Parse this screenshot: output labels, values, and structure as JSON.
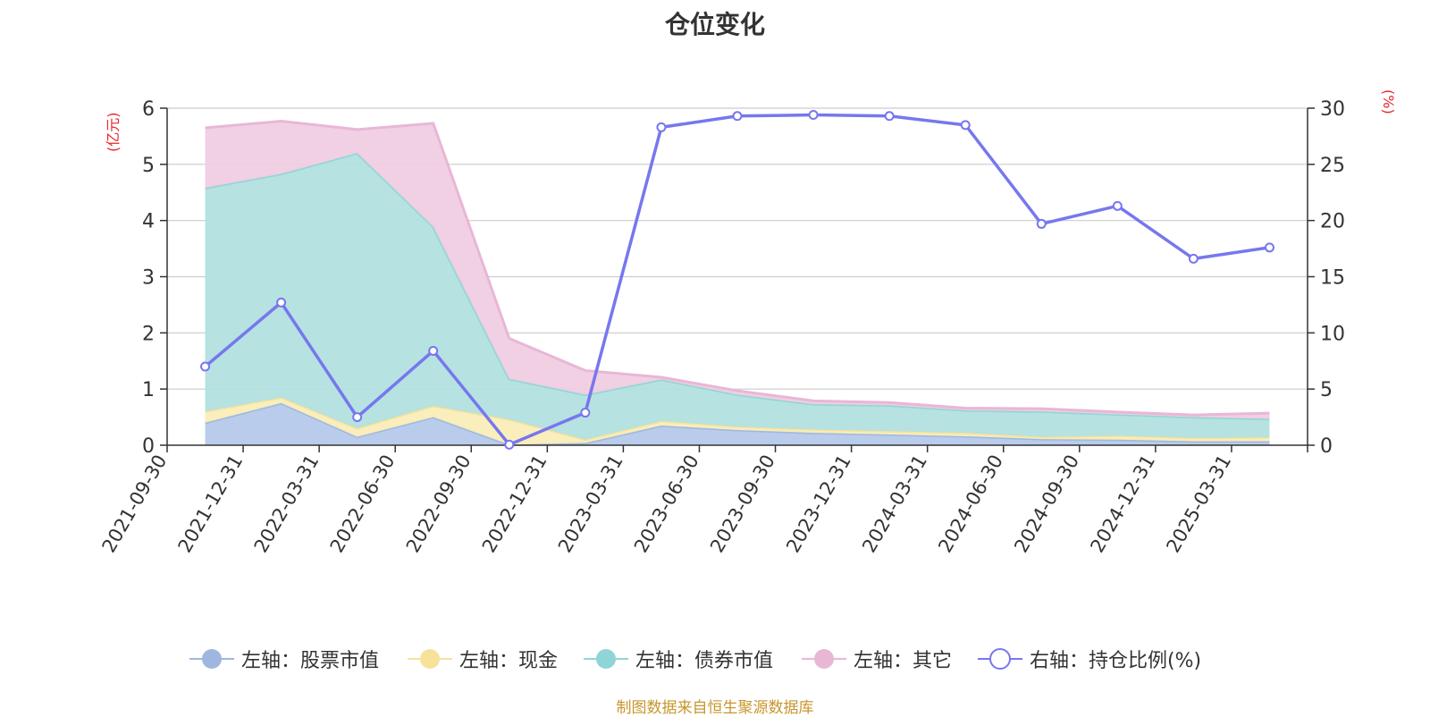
{
  "chart_data": {
    "type": "area",
    "title": "仓位变化",
    "left_axis_unit": "(亿元)",
    "right_axis_unit": "(%)",
    "categories": [
      "2021-09-30",
      "2021-12-31",
      "2022-03-31",
      "2022-06-30",
      "2022-09-30",
      "2022-12-31",
      "2023-03-31",
      "2023-06-30",
      "2023-09-30",
      "2023-12-31",
      "2024-03-31",
      "2024-06-30",
      "2024-09-30",
      "2024-12-31",
      "2025-03-31"
    ],
    "left_ylim": [
      0,
      6
    ],
    "left_ticks": [
      0,
      1,
      2,
      3,
      4,
      5,
      6
    ],
    "right_ylim": [
      0,
      30
    ],
    "right_ticks": [
      0,
      5,
      10,
      15,
      20,
      25,
      30
    ],
    "stacked_series": [
      {
        "name": "左轴：股票市值",
        "color": "#9fb7e0",
        "fill": "#b5c9ea",
        "values": [
          0.4,
          0.75,
          0.15,
          0.5,
          0.01,
          0.04,
          0.35,
          0.27,
          0.22,
          0.19,
          0.16,
          0.11,
          0.1,
          0.07,
          0.07
        ]
      },
      {
        "name": "左轴：现金",
        "color": "#f7e29c",
        "fill": "#faedb8",
        "values": [
          0.2,
          0.1,
          0.15,
          0.2,
          0.45,
          0.06,
          0.08,
          0.06,
          0.06,
          0.06,
          0.06,
          0.04,
          0.07,
          0.06,
          0.07
        ]
      },
      {
        "name": "左轴：债券市值",
        "color": "#90d5d5",
        "fill": "#b2e0e0",
        "values": [
          3.98,
          3.98,
          4.9,
          3.19,
          0.72,
          0.8,
          0.74,
          0.57,
          0.45,
          0.46,
          0.4,
          0.45,
          0.38,
          0.37,
          0.33
        ]
      },
      {
        "name": "左轴：其它",
        "color": "#e8b7d6",
        "fill": "#f0cde3",
        "values": [
          1.07,
          0.94,
          0.42,
          1.84,
          0.72,
          0.43,
          0.04,
          0.07,
          0.06,
          0.05,
          0.04,
          0.05,
          0.04,
          0.04,
          0.1
        ]
      }
    ],
    "line_series": {
      "name": "右轴：持仓比例(%)",
      "color": "#7777ee",
      "values": [
        7.0,
        12.7,
        2.5,
        8.4,
        0.05,
        2.9,
        28.3,
        29.3,
        29.4,
        29.3,
        28.5,
        19.7,
        21.3,
        16.6,
        17.6
      ]
    },
    "source": "制图数据来自恒生聚源数据库"
  }
}
